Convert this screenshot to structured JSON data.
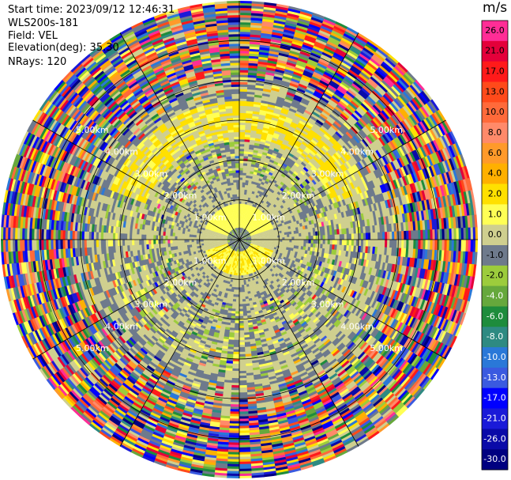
{
  "info": {
    "start_time": "Start time: 2023/09/12 12:46:31",
    "instrument": "WLS200s-181",
    "field": "Field: VEL",
    "elevation": "Elevation(deg): 35.30",
    "nrays": "NRays: 120"
  },
  "colorbar": {
    "unit": "m/s",
    "ticks": [
      "26.0",
      "21.0",
      "17.0",
      "13.0",
      "10.0",
      "8.0",
      "6.0",
      "4.0",
      "2.0",
      "1.0",
      "0.0",
      "-1.0",
      "-2.0",
      "-4.0",
      "-6.0",
      "-8.0",
      "-10.0",
      "-13.0",
      "-17.0",
      "-21.0",
      "-26.0",
      "-30.0"
    ],
    "colors": [
      "#ff2d96",
      "#e4003a",
      "#ff1a1a",
      "#ff4a1a",
      "#ff6a3a",
      "#ff8a6a",
      "#ff9a2a",
      "#ffb000",
      "#ffe000",
      "#ffff55",
      "#cfcf8f",
      "#6e7a8c",
      "#9ccc3c",
      "#66a83c",
      "#1e8c3c",
      "#2e8a82",
      "#2a78d8",
      "#3a5ae0",
      "#0000ff",
      "#1a1ad8",
      "#0a0aa8",
      "#000080"
    ]
  },
  "chart_data": {
    "type": "heatmap",
    "projection": "polar (PPI)",
    "field": "VEL",
    "units": "m/s",
    "elevation_deg": 35.3,
    "n_rays": 120,
    "range_rings_km": [
      1.0,
      2.0,
      3.0,
      4.0,
      5.0
    ],
    "range_ring_labels": [
      "1.00km",
      "2.00km",
      "3.00km",
      "4.00km",
      "5.00km"
    ],
    "max_range_km": 6.0,
    "spoke_count": 12,
    "color_range": [
      -30.0,
      26.0
    ],
    "features": [
      {
        "region": "near center",
        "range_km": [
          0.0,
          0.3
        ],
        "velocity_ms": -5
      },
      {
        "region": "north inner",
        "range_km": [
          0.4,
          0.9
        ],
        "velocity_ms": 2
      },
      {
        "region": "south inner",
        "range_km": [
          0.3,
          0.9
        ],
        "velocity_ms": 3
      },
      {
        "region": "ring",
        "range_km": [
          0.9,
          1.6
        ],
        "velocity_ms": -2
      },
      {
        "region": "north band",
        "range_km": [
          2.5,
          3.5
        ],
        "velocity_ms": 3
      },
      {
        "region": "mid ring",
        "range_km": [
          1.6,
          3.0
        ],
        "velocity_ms": 0
      },
      {
        "region": "outer (noise)",
        "range_km": [
          3.5,
          6.0
        ],
        "velocity_ms": null
      }
    ]
  }
}
